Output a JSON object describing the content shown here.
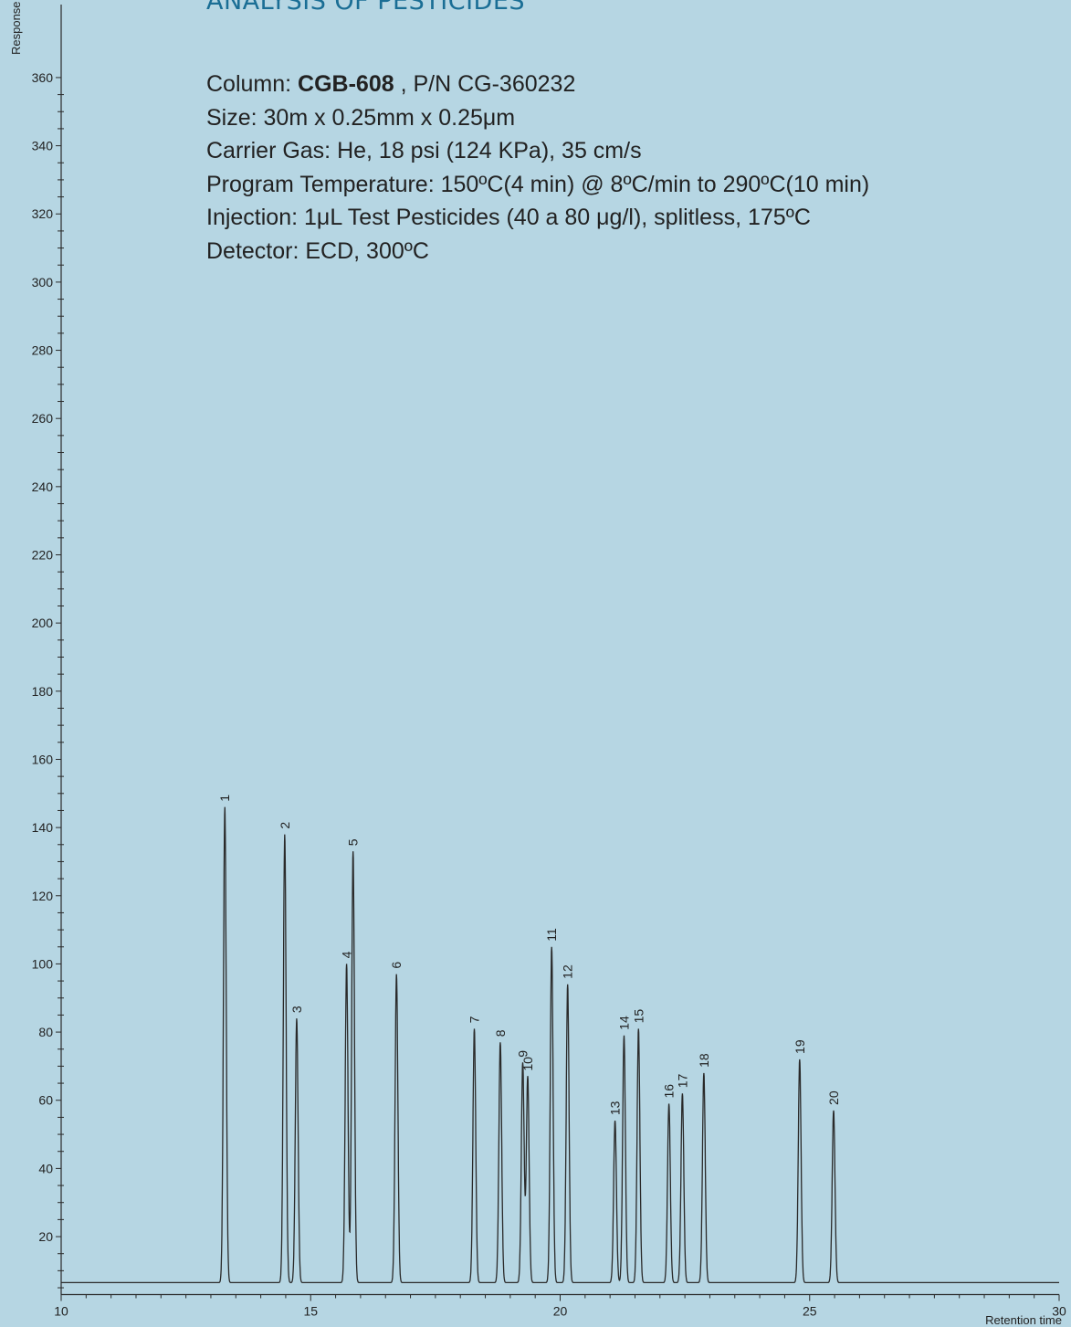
{
  "title": "ANALYSIS OF PESTICIDES",
  "conditions": {
    "column_prefix": "Column: ",
    "column_name": "CGB-608",
    "column_suffix": " , P/N CG-360232",
    "size": "Size: 30m x 0.25mm x 0.25μm",
    "carrier_gas": "Carrier Gas: He, 18 psi (124 KPa), 35 cm/s",
    "program_temperature": "Program Temperature: 150ºC(4 min) @ 8ºC/min to 290ºC(10 min)",
    "injection": "Injection: 1μL Test Pesticides (40 a 80 μg/l), splitless, 175ºC",
    "detector": "Detector: ECD, 300ºC"
  },
  "colors": {
    "background": "#b6d6e3",
    "title": "#1a6e95",
    "trace": "#2a2a2a",
    "text": "#222222"
  },
  "chart_data": {
    "type": "line",
    "xlabel": "Retention time",
    "ylabel": "Response",
    "xlim": [
      10,
      30
    ],
    "ylim": [
      3,
      364
    ],
    "xticks": [
      10,
      15,
      20,
      25,
      30
    ],
    "yticks": [
      20,
      40,
      60,
      80,
      100,
      120,
      140,
      160,
      180,
      200,
      220,
      240,
      260,
      280,
      300,
      320,
      340,
      360
    ],
    "grid": false,
    "baseline": 6.5,
    "peaks": [
      {
        "label": "1",
        "x": 13.28,
        "y": 146
      },
      {
        "label": "2",
        "x": 14.48,
        "y": 138
      },
      {
        "label": "3",
        "x": 14.72,
        "y": 84
      },
      {
        "label": "4",
        "x": 15.72,
        "y": 100
      },
      {
        "label": "5",
        "x": 15.85,
        "y": 133
      },
      {
        "label": "6",
        "x": 16.72,
        "y": 97
      },
      {
        "label": "7",
        "x": 18.28,
        "y": 81
      },
      {
        "label": "8",
        "x": 18.8,
        "y": 77
      },
      {
        "label": "9",
        "x": 19.25,
        "y": 71
      },
      {
        "label": "10",
        "x": 19.35,
        "y": 67
      },
      {
        "label": "11",
        "x": 19.83,
        "y": 105
      },
      {
        "label": "12",
        "x": 20.15,
        "y": 94
      },
      {
        "label": "13",
        "x": 21.1,
        "y": 54
      },
      {
        "label": "14",
        "x": 21.28,
        "y": 79
      },
      {
        "label": "15",
        "x": 21.57,
        "y": 81
      },
      {
        "label": "16",
        "x": 22.18,
        "y": 59
      },
      {
        "label": "17",
        "x": 22.45,
        "y": 62
      },
      {
        "label": "18",
        "x": 22.88,
        "y": 68
      },
      {
        "label": "19",
        "x": 24.8,
        "y": 72
      },
      {
        "label": "20",
        "x": 25.48,
        "y": 57
      }
    ]
  }
}
